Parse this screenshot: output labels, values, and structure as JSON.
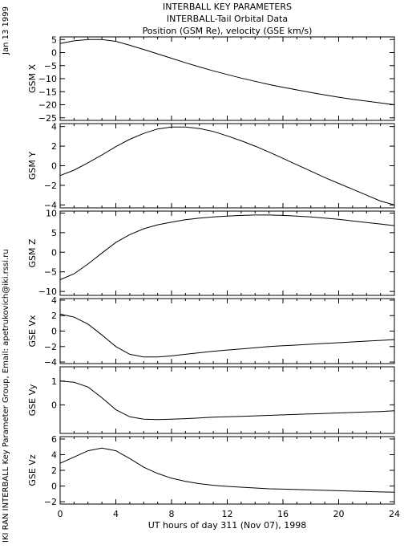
{
  "header": {
    "title_line1": "INTERBALL KEY PARAMETERS",
    "title_line2": "INTERBALL-Tail Orbital Data",
    "title_line3": "Position (GSM Re), velocity (GSE km/s)"
  },
  "side": {
    "date": "Jan 13 1999",
    "credit": "IKI RAN INTERBALL Key Parameter Group, Email: apetrukovich@iki.rssi.ru"
  },
  "colors": {
    "line": "#000000",
    "background": "#ffffff"
  },
  "chart_data": {
    "type": "line",
    "xlabel": "UT hours of day 311 (Nov 07), 1998",
    "xlim": [
      0,
      24
    ],
    "xticks": [
      0,
      4,
      8,
      12,
      16,
      20,
      24
    ],
    "grid": false,
    "panels": [
      {
        "ylabel": "GSM X",
        "ylim": [
          -26,
          6
        ],
        "yticks": [
          5,
          0,
          -5,
          -10,
          -15,
          -20,
          -25
        ],
        "x": [
          0,
          1,
          2,
          3,
          4,
          5,
          6,
          7,
          8,
          9,
          10,
          11,
          12,
          13,
          14,
          15,
          16,
          17,
          18,
          19,
          20,
          21,
          22,
          23,
          24
        ],
        "values": [
          3.5,
          4.5,
          5.0,
          5.0,
          4.3,
          2.8,
          1.2,
          -0.5,
          -2.2,
          -3.9,
          -5.5,
          -7.0,
          -8.4,
          -9.8,
          -11.0,
          -12.2,
          -13.3,
          -14.3,
          -15.3,
          -16.2,
          -17.1,
          -17.9,
          -18.6,
          -19.3,
          -20.0
        ]
      },
      {
        "ylabel": "GSM Y",
        "ylim": [
          -4.3,
          4.3
        ],
        "yticks": [
          4,
          2,
          0,
          -2,
          -4
        ],
        "x": [
          0,
          1,
          2,
          3,
          4,
          5,
          6,
          7,
          8,
          9,
          10,
          11,
          12,
          13,
          14,
          15,
          16,
          17,
          18,
          19,
          20,
          21,
          22,
          23,
          24
        ],
        "values": [
          -1.0,
          -0.45,
          0.3,
          1.1,
          1.95,
          2.7,
          3.3,
          3.75,
          3.95,
          3.95,
          3.8,
          3.5,
          3.05,
          2.55,
          2.0,
          1.4,
          0.75,
          0.1,
          -0.55,
          -1.2,
          -1.8,
          -2.4,
          -3.0,
          -3.6,
          -4.0
        ]
      },
      {
        "ylabel": "GSM Z",
        "ylim": [
          -11,
          10.5
        ],
        "yticks": [
          10,
          5,
          0,
          -5,
          -10
        ],
        "x": [
          0,
          1,
          2,
          3,
          4,
          5,
          6,
          7,
          8,
          9,
          10,
          11,
          12,
          13,
          14,
          15,
          16,
          17,
          18,
          19,
          20,
          21,
          22,
          23,
          24
        ],
        "values": [
          -7.0,
          -5.5,
          -3.0,
          -0.2,
          2.5,
          4.5,
          6.0,
          7.0,
          7.7,
          8.3,
          8.7,
          9.0,
          9.2,
          9.4,
          9.5,
          9.5,
          9.4,
          9.2,
          9.0,
          8.7,
          8.4,
          8.0,
          7.6,
          7.2,
          6.8
        ]
      },
      {
        "ylabel": "GSE Vx",
        "ylim": [
          -4.2,
          4.2
        ],
        "yticks": [
          4,
          2,
          0,
          -2,
          -4
        ],
        "x": [
          0,
          1,
          2,
          3,
          4,
          5,
          6,
          7,
          8,
          9,
          10,
          11,
          12,
          13,
          14,
          15,
          16,
          17,
          18,
          19,
          20,
          21,
          22,
          23,
          24
        ],
        "values": [
          2.2,
          1.8,
          0.9,
          -0.5,
          -2.0,
          -3.0,
          -3.35,
          -3.35,
          -3.2,
          -3.0,
          -2.8,
          -2.6,
          -2.45,
          -2.3,
          -2.15,
          -2.0,
          -1.9,
          -1.8,
          -1.7,
          -1.6,
          -1.5,
          -1.4,
          -1.3,
          -1.2,
          -1.1
        ]
      },
      {
        "ylabel": "GSE Vy",
        "ylim": [
          -1.2,
          1.6
        ],
        "yticks": [
          1,
          0
        ],
        "x": [
          0,
          1,
          2,
          3,
          4,
          5,
          6,
          7,
          8,
          9,
          10,
          11,
          12,
          13,
          14,
          15,
          16,
          17,
          18,
          19,
          20,
          21,
          22,
          23,
          24
        ],
        "values": [
          1.0,
          0.95,
          0.75,
          0.3,
          -0.2,
          -0.5,
          -0.6,
          -0.62,
          -0.6,
          -0.58,
          -0.55,
          -0.52,
          -0.5,
          -0.48,
          -0.46,
          -0.44,
          -0.42,
          -0.4,
          -0.38,
          -0.36,
          -0.34,
          -0.32,
          -0.3,
          -0.28,
          -0.25
        ]
      },
      {
        "ylabel": "GSE Vz",
        "ylim": [
          -2.3,
          6.3
        ],
        "yticks": [
          6,
          4,
          2,
          0,
          -2
        ],
        "x": [
          0,
          1,
          2,
          3,
          4,
          5,
          6,
          7,
          8,
          9,
          10,
          11,
          12,
          13,
          14,
          15,
          16,
          17,
          18,
          19,
          20,
          21,
          22,
          23,
          24
        ],
        "values": [
          2.9,
          3.7,
          4.5,
          4.85,
          4.5,
          3.5,
          2.4,
          1.6,
          1.0,
          0.6,
          0.3,
          0.1,
          -0.05,
          -0.15,
          -0.25,
          -0.35,
          -0.4,
          -0.45,
          -0.5,
          -0.55,
          -0.6,
          -0.65,
          -0.7,
          -0.75,
          -0.8
        ]
      }
    ]
  }
}
